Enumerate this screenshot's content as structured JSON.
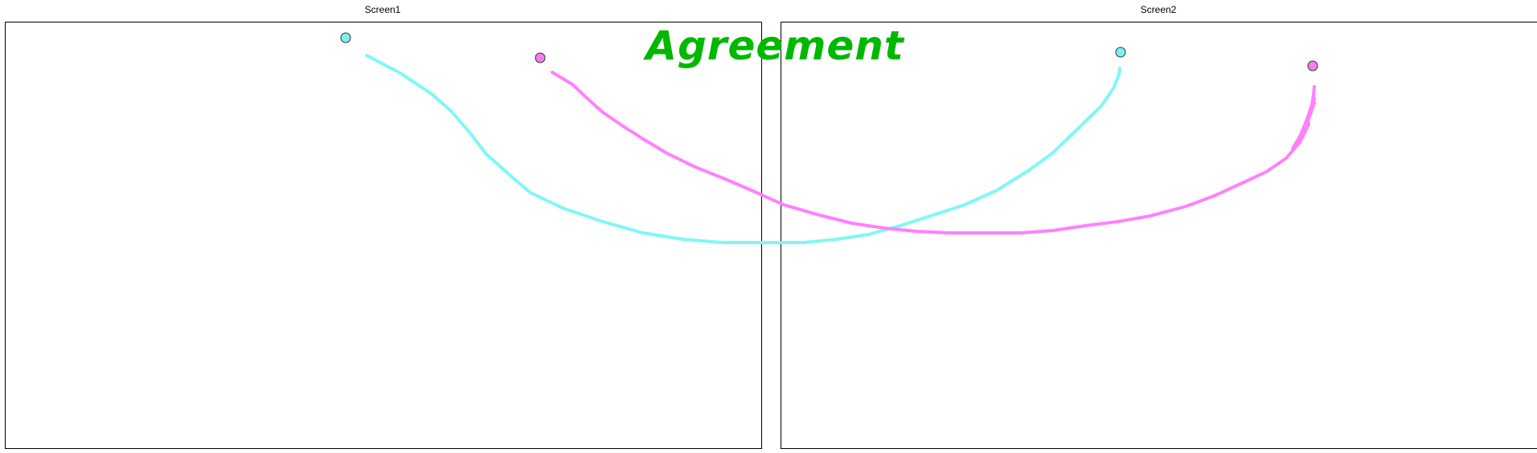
{
  "screens": [
    {
      "label": "Screen1"
    },
    {
      "label": "Screen2"
    }
  ],
  "result": {
    "label": "Agreement",
    "color": "#00b800"
  },
  "traces": [
    {
      "name": "cyan",
      "color": "#7ff7f7",
      "marker_fill": "#7ff0f0"
    },
    {
      "name": "magenta",
      "color": "#ff80ff",
      "marker_fill": "#f080f0"
    }
  ]
}
